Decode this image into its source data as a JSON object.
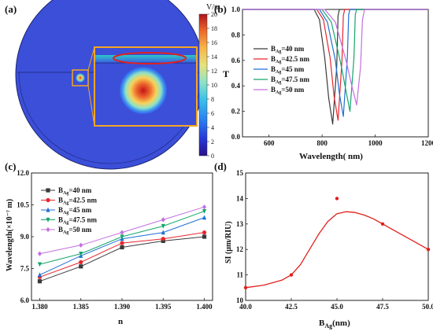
{
  "panel_a": {
    "label": "(a)",
    "colorbar_unit": "V/m",
    "colorbar_ticks": [
      "20",
      "18",
      "16",
      "14",
      "12",
      "10",
      "8",
      "6",
      "4",
      "2",
      "0"
    ],
    "colorbar_colors": [
      "#2c0f8c",
      "#2637d9",
      "#2b83f0",
      "#3cc3e8",
      "#8fe3c6",
      "#e8e27a",
      "#f6b64a",
      "#ee6a2c",
      "#d8261c",
      "#b0131b"
    ]
  },
  "panel_b": {
    "label": "(b)",
    "xlabel": "Wavelength( nm)",
    "ylabel": "T",
    "xticks": [
      "600",
      "800",
      "1000",
      "1200"
    ],
    "yticks": [
      "0.0",
      "0.2",
      "0.4",
      "0.6",
      "0.8",
      "1.0"
    ],
    "legend": [
      {
        "prefix": "B",
        "sub": "Ag",
        "text": "=40   nm",
        "color": "#3a3a3a"
      },
      {
        "prefix": "B",
        "sub": "Ag",
        "text": "=42.5  nm",
        "color": "#e8262c"
      },
      {
        "prefix": "B",
        "sub": "Ag",
        "text": "=45   nm",
        "color": "#1f6fd6"
      },
      {
        "prefix": "B",
        "sub": "Ag",
        "text": "=47.5  nm",
        "color": "#15a66a"
      },
      {
        "prefix": "B",
        "sub": "Ag",
        "text": "=50   nm",
        "color": "#c46fe0"
      }
    ]
  },
  "panel_c": {
    "label": "(c)",
    "xlabel": "n",
    "ylabel": "Wavelength(×10⁻⁷ m)",
    "xticks": [
      "1.380",
      "1.385",
      "1.390",
      "1.395",
      "1.400"
    ],
    "yticks": [
      "6.0",
      "7.5",
      "9.0",
      "10.5",
      "12.0"
    ],
    "legend": [
      {
        "prefix": "B",
        "sub": "Ag",
        "text": "=40   nm",
        "color": "#3a3a3a",
        "marker": "square"
      },
      {
        "prefix": "B",
        "sub": "Ag",
        "text": "=42.5  nm",
        "color": "#e8262c",
        "marker": "circle"
      },
      {
        "prefix": "B",
        "sub": "Ag",
        "text": "=45   nm",
        "color": "#1f6fd6",
        "marker": "triangle-up"
      },
      {
        "prefix": "B",
        "sub": "Ag",
        "text": "=47.5  nm",
        "color": "#15a66a",
        "marker": "triangle-down"
      },
      {
        "prefix": "B",
        "sub": "Ag",
        "text": "=50   nm",
        "color": "#c46fe0",
        "marker": "diamond"
      }
    ]
  },
  "panel_d": {
    "label": "(d)",
    "xlabel_prefix": "B",
    "xlabel_sub": "Ag",
    "xlabel_suffix": "(nm)",
    "ylabel": "SI (μm/RIU)",
    "xticks": [
      "40.0",
      "42.5",
      "45.0",
      "47.5",
      "50.0"
    ],
    "yticks": [
      "10",
      "11",
      "12",
      "13",
      "14",
      "15"
    ]
  },
  "chart_data": [
    {
      "type": "line",
      "xlabel": "Wavelength( nm)",
      "ylabel": "T",
      "xlim": [
        500,
        1200
      ],
      "ylim": [
        0,
        1.0
      ],
      "series": [
        {
          "name": "BAg=40 nm",
          "dip_x": 840,
          "dip_y": 0.1,
          "x": [
            500,
            770,
            790,
            810,
            825,
            840,
            855,
            860,
            865,
            1200
          ],
          "y": [
            1.0,
            1.0,
            0.92,
            0.62,
            0.3,
            0.1,
            0.55,
            0.95,
            1.0,
            1.0
          ]
        },
        {
          "name": "BAg=42.5 nm",
          "dip_x": 860,
          "dip_y": 0.13,
          "x": [
            500,
            780,
            805,
            830,
            845,
            860,
            875,
            880,
            885,
            1200
          ],
          "y": [
            1.0,
            1.0,
            0.92,
            0.62,
            0.32,
            0.13,
            0.6,
            0.95,
            1.0,
            1.0
          ]
        },
        {
          "name": "BAg=45 nm",
          "dip_x": 880,
          "dip_y": 0.16,
          "x": [
            500,
            790,
            820,
            850,
            865,
            880,
            895,
            900,
            905,
            1200
          ],
          "y": [
            1.0,
            1.0,
            0.9,
            0.6,
            0.34,
            0.16,
            0.62,
            0.96,
            1.0,
            1.0
          ]
        },
        {
          "name": "BAg=47.5 nm",
          "dip_x": 905,
          "dip_y": 0.2,
          "x": [
            500,
            800,
            835,
            870,
            890,
            905,
            920,
            925,
            930,
            1200
          ],
          "y": [
            1.0,
            1.0,
            0.9,
            0.58,
            0.36,
            0.2,
            0.62,
            0.96,
            1.0,
            1.0
          ]
        },
        {
          "name": "BAg=50 nm",
          "dip_x": 930,
          "dip_y": 0.25,
          "x": [
            500,
            810,
            850,
            890,
            912,
            930,
            945,
            952,
            960,
            1200
          ],
          "y": [
            1.0,
            1.0,
            0.9,
            0.6,
            0.4,
            0.25,
            0.55,
            0.92,
            1.0,
            1.0
          ]
        }
      ]
    },
    {
      "type": "line",
      "xlabel": "n",
      "ylabel": "Wavelength(×10⁻⁷ m)",
      "xlim": [
        1.379,
        1.401
      ],
      "ylim": [
        6.0,
        12.0
      ],
      "x": [
        1.38,
        1.385,
        1.39,
        1.395,
        1.4
      ],
      "series": [
        {
          "name": "BAg=40 nm",
          "values": [
            6.9,
            7.6,
            8.5,
            8.8,
            9.0
          ]
        },
        {
          "name": "BAg=42.5 nm",
          "values": [
            7.1,
            7.8,
            8.7,
            8.9,
            9.2
          ]
        },
        {
          "name": "BAg=45 nm",
          "values": [
            7.2,
            8.1,
            8.9,
            9.2,
            9.9
          ]
        },
        {
          "name": "BAg=47.5 nm",
          "values": [
            7.7,
            8.2,
            9.0,
            9.5,
            10.2
          ]
        },
        {
          "name": "BAg=50 nm",
          "values": [
            8.2,
            8.6,
            9.2,
            9.8,
            10.4
          ]
        }
      ]
    },
    {
      "type": "scatter",
      "xlabel": "BAg(nm)",
      "ylabel": "SI (μm/RIU)",
      "xlim": [
        40,
        50
      ],
      "ylim": [
        10,
        15
      ],
      "points": {
        "x": [
          40.0,
          42.5,
          45.0,
          47.5,
          50.0
        ],
        "y": [
          10.5,
          11.0,
          14.0,
          13.0,
          12.0
        ]
      },
      "fit": {
        "x": [
          40,
          41,
          42,
          42.5,
          43,
          43.5,
          44,
          44.5,
          45,
          45.5,
          46,
          46.5,
          47,
          47.5,
          48,
          49,
          50
        ],
        "y": [
          10.5,
          10.6,
          10.8,
          11.0,
          11.4,
          12.0,
          12.6,
          13.1,
          13.4,
          13.48,
          13.45,
          13.35,
          13.2,
          13.0,
          12.8,
          12.4,
          12.0
        ]
      }
    }
  ]
}
